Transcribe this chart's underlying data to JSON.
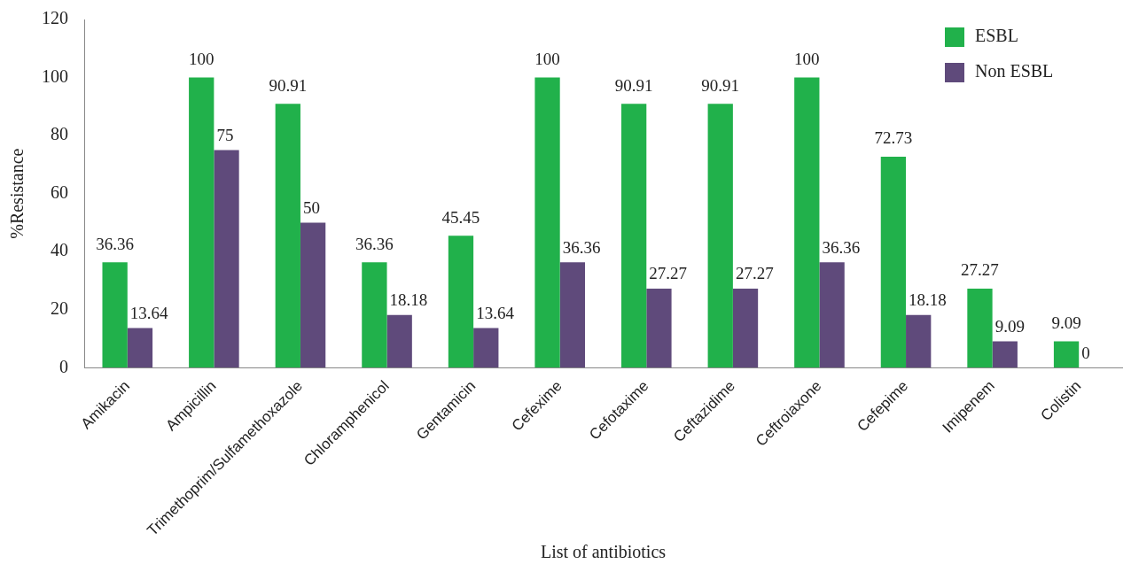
{
  "chart_data": {
    "type": "bar",
    "xlabel": "List of antibiotics",
    "ylabel": "%Resistance",
    "categories": [
      "Amikacin",
      "Ampicillin",
      "Trimethoprim/Sulfamethoxazole",
      "Chloramphenicol",
      "Gentamicin",
      "Cefexime",
      "Cefotaxime",
      "Ceftazidime",
      "Ceftroiaxone",
      "Cefepime",
      "Imipenem",
      "Colistin"
    ],
    "series": [
      {
        "name": "ESBL",
        "color": "#21b14b",
        "values": [
          36.36,
          100,
          90.91,
          36.36,
          45.45,
          100,
          90.91,
          90.91,
          100,
          72.73,
          27.27,
          9.09
        ]
      },
      {
        "name": "Non ESBL",
        "color": "#5f4a7b",
        "values": [
          13.64,
          75,
          50,
          18.18,
          13.64,
          36.36,
          27.27,
          27.27,
          36.36,
          18.18,
          9.09,
          0
        ]
      }
    ],
    "ylim": [
      0,
      120
    ],
    "yticks": [
      0,
      20,
      40,
      60,
      80,
      100,
      120
    ],
    "grid": false,
    "legend": "top right",
    "data_labels": true
  }
}
